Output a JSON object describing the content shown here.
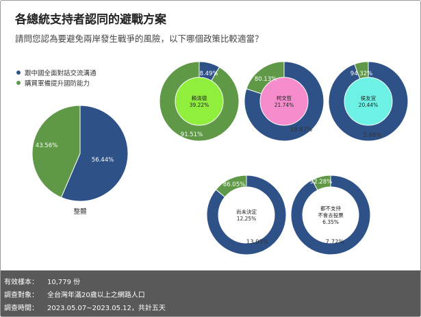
{
  "title": "各總統支持者認同的避戰方案",
  "subtitle": "請問您認為要避免兩岸發生戰爭的風險，以下哪個政策比較適當？",
  "legend": [
    {
      "label": "跟中國全面對話交流溝通",
      "color": "#2e5288"
    },
    {
      "label": "購買軍備提升國防能力",
      "color": "#5f9846"
    }
  ],
  "chart_data": [
    {
      "type": "pie",
      "name": "整體",
      "slices": [
        {
          "label": "跟中國全面對話交流溝通",
          "value": 56.44
        },
        {
          "label": "購買軍備提升國防能力",
          "value": 43.56
        }
      ],
      "value_labels": [
        "56.44%",
        "43.56%"
      ],
      "center_label": "",
      "center_share": "",
      "center_color": ""
    },
    {
      "type": "pie",
      "name": "賴清德",
      "slices": [
        {
          "label": "跟中國全面對話交流溝通",
          "value": 8.49
        },
        {
          "label": "購買軍備提升國防能力",
          "value": 91.51
        }
      ],
      "value_labels": [
        "8.49%",
        "91.51%"
      ],
      "center_label": "賴清德",
      "center_share": "39.22%",
      "center_color": "#8fef3c"
    },
    {
      "type": "pie",
      "name": "柯文哲",
      "slices": [
        {
          "label": "跟中國全面對話交流溝通",
          "value": 80.13
        },
        {
          "label": "購買軍備提升國防能力",
          "value": 19.87
        }
      ],
      "value_labels": [
        "80.13%",
        "19.87%"
      ],
      "center_label": "柯文哲",
      "center_share": "21.74%",
      "center_color": "#f78ccd"
    },
    {
      "type": "pie",
      "name": "侯友宜",
      "slices": [
        {
          "label": "跟中國全面對話交流溝通",
          "value": 94.32
        },
        {
          "label": "購買軍備提升國防能力",
          "value": 5.68
        }
      ],
      "value_labels": [
        "94.32%",
        "5.68%"
      ],
      "center_label": "侯友宜",
      "center_share": "20.44%",
      "center_color": "#6df1e5"
    },
    {
      "type": "pie",
      "name": "尚未決定",
      "slices": [
        {
          "label": "跟中國全面對話交流溝通",
          "value": 86.05
        },
        {
          "label": "購買軍備提升國防能力",
          "value": 13.95
        }
      ],
      "value_labels": [
        "86.05%",
        "13.95%"
      ],
      "center_label": "尚未決定",
      "center_share": "12.25%",
      "center_color": "#ffffff"
    },
    {
      "type": "pie",
      "name": "都不支持不會去投票",
      "slices": [
        {
          "label": "跟中國全面對話交流溝通",
          "value": 92.28
        },
        {
          "label": "購買軍備提升國防能力",
          "value": 7.72
        }
      ],
      "value_labels": [
        "92.28%",
        "7.72%"
      ],
      "center_label": "都不支持\n不會去投票",
      "center_share": "6.35%",
      "center_color": "#ffffff"
    }
  ],
  "footer": [
    {
      "label": "有效樣本：",
      "value": "10,779 份"
    },
    {
      "label": "調查對象：",
      "value": "全台灣年滿20歲以上之網路人口"
    },
    {
      "label": "調查時間：",
      "value": "2023.05.07~2023.05.12，共計五天"
    }
  ]
}
